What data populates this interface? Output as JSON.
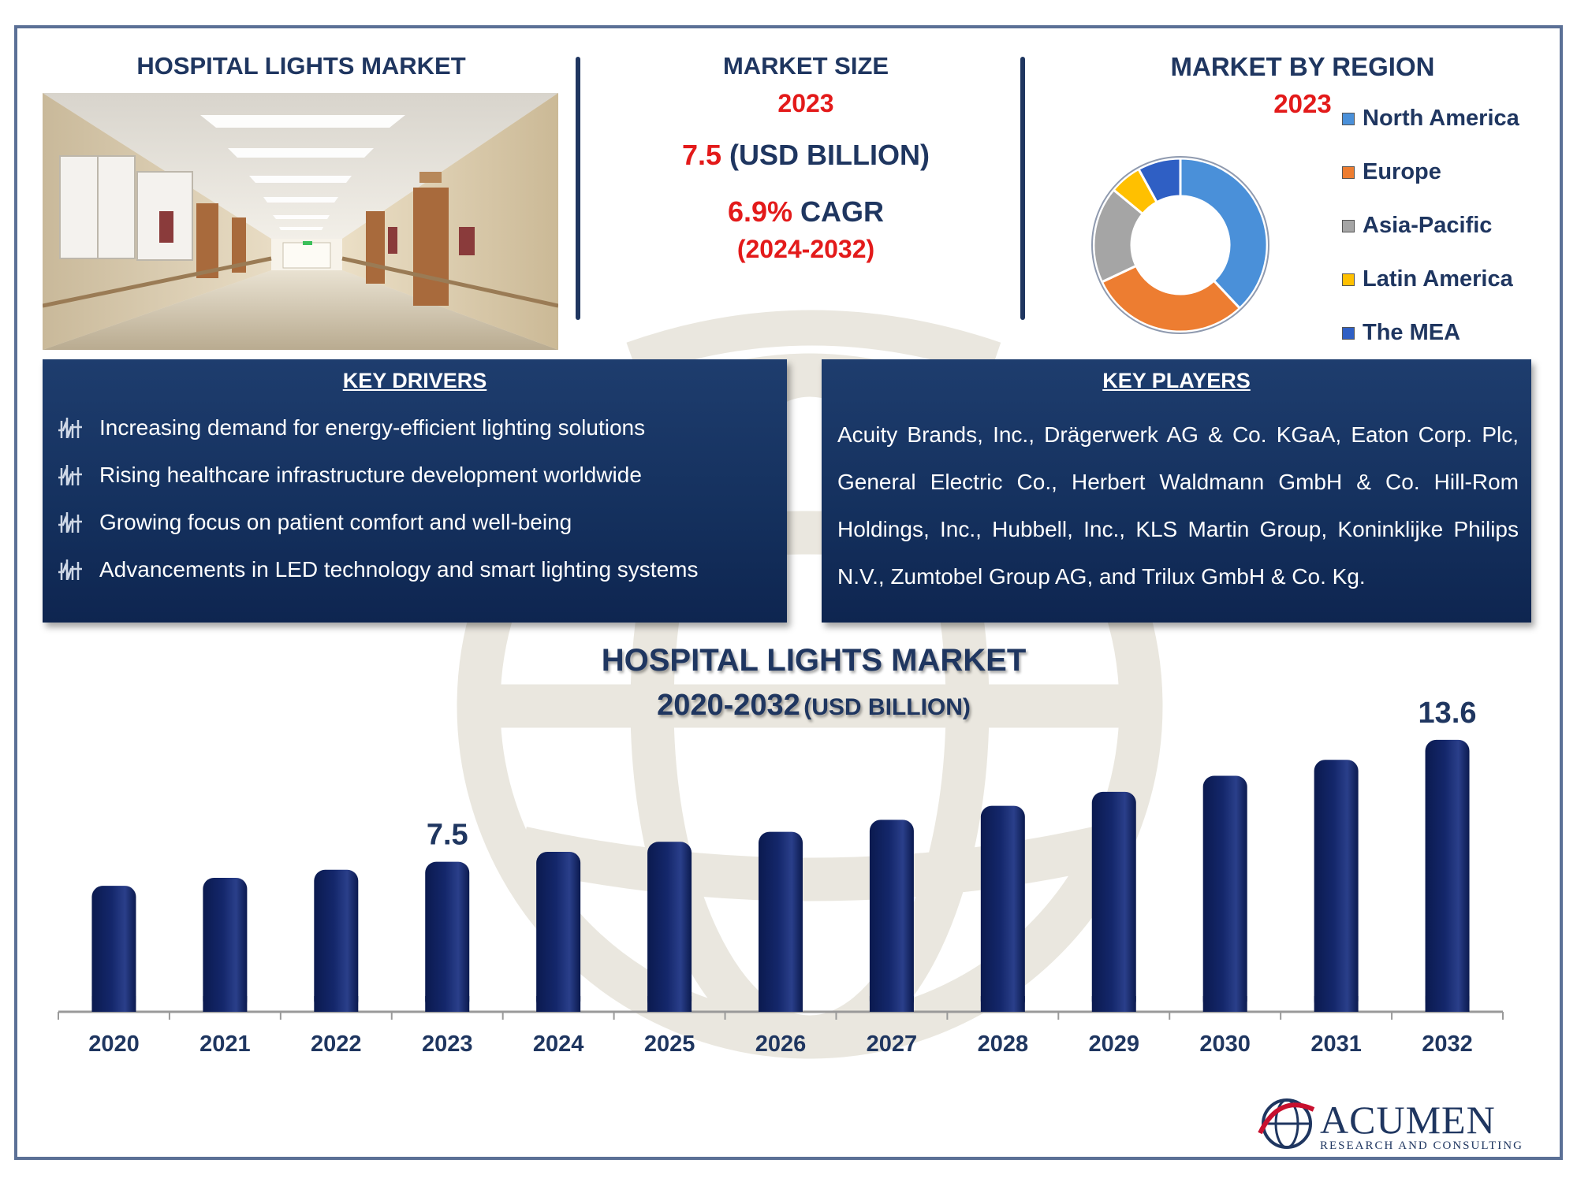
{
  "header": {
    "left_title": "HOSPITAL LIGHTS MARKET",
    "market_size_title": "MARKET SIZE",
    "market_size_year": "2023",
    "market_size_value": "7.5",
    "market_size_unit": "(USD BILLION)",
    "cagr_value": "6.9%",
    "cagr_label": "CAGR",
    "cagr_period": "(2024-2032)",
    "region_title": "MARKET BY REGION",
    "region_year": "2023"
  },
  "region_legend": [
    {
      "label": "North America",
      "color": "#4a90d9"
    },
    {
      "label": "Europe",
      "color": "#ed7d31"
    },
    {
      "label": "Asia-Pacific",
      "color": "#a5a5a5"
    },
    {
      "label": "Latin America",
      "color": "#ffc000"
    },
    {
      "label": "The MEA",
      "color": "#2f5fc4"
    }
  ],
  "key_drivers": {
    "title": "KEY DRIVERS",
    "items": [
      "Increasing demand for energy-efficient lighting solutions",
      "Rising healthcare infrastructure development worldwide",
      "Growing focus on patient comfort and well-being",
      "Advancements in LED technology and smart lighting systems"
    ]
  },
  "key_players": {
    "title": "KEY PLAYERS",
    "text": "Acuity Brands, Inc., Drägerwerk AG & Co. KGaA, Eaton Corp. Plc, General Electric Co., Herbert Waldmann GmbH & Co. Hill-Rom Holdings, Inc., Hubbell, Inc., KLS Martin Group, Koninklijke Philips N.V., Zumtobel Group AG, and Trilux GmbH & Co. Kg."
  },
  "logo": {
    "name": "ACUMEN",
    "tagline": "RESEARCH AND CONSULTING"
  },
  "chart_data": [
    {
      "type": "pie",
      "title": "MARKET BY REGION",
      "subtitle": "2023",
      "categories": [
        "North America",
        "Europe",
        "Asia-Pacific",
        "Latin America",
        "The MEA"
      ],
      "values": [
        38,
        30,
        18,
        6,
        8
      ],
      "colors": [
        "#4a90d9",
        "#ed7d31",
        "#a5a5a5",
        "#ffc000",
        "#2f5fc4"
      ],
      "legend": "right"
    },
    {
      "type": "bar",
      "title": "HOSPITAL LIGHTS MARKET",
      "subtitle_main": "2020-2032",
      "subtitle_unit": "(USD BILLION)",
      "categories": [
        "2020",
        "2021",
        "2022",
        "2023",
        "2024",
        "2025",
        "2026",
        "2027",
        "2028",
        "2029",
        "2030",
        "2031",
        "2032"
      ],
      "values": [
        6.3,
        6.7,
        7.1,
        7.5,
        8.0,
        8.5,
        9.0,
        9.6,
        10.3,
        11.0,
        11.8,
        12.6,
        13.6
      ],
      "data_labels": {
        "3": "7.5",
        "12": "13.6"
      },
      "ylim": [
        0,
        14.5
      ],
      "bar_color": "#14276b",
      "grid": false
    }
  ]
}
